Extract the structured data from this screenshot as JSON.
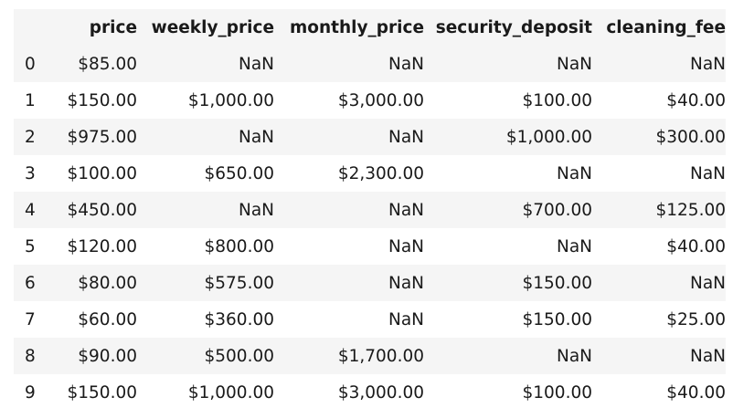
{
  "table": {
    "index_header": "",
    "columns": [
      "price",
      "weekly_price",
      "monthly_price",
      "security_deposit",
      "cleaning_fee"
    ],
    "rows": [
      {
        "index": "0",
        "values": [
          "$85.00",
          "NaN",
          "NaN",
          "NaN",
          "NaN"
        ]
      },
      {
        "index": "1",
        "values": [
          "$150.00",
          "$1,000.00",
          "$3,000.00",
          "$100.00",
          "$40.00"
        ]
      },
      {
        "index": "2",
        "values": [
          "$975.00",
          "NaN",
          "NaN",
          "$1,000.00",
          "$300.00"
        ]
      },
      {
        "index": "3",
        "values": [
          "$100.00",
          "$650.00",
          "$2,300.00",
          "NaN",
          "NaN"
        ]
      },
      {
        "index": "4",
        "values": [
          "$450.00",
          "NaN",
          "NaN",
          "$700.00",
          "$125.00"
        ]
      },
      {
        "index": "5",
        "values": [
          "$120.00",
          "$800.00",
          "NaN",
          "NaN",
          "$40.00"
        ]
      },
      {
        "index": "6",
        "values": [
          "$80.00",
          "$575.00",
          "NaN",
          "$150.00",
          "NaN"
        ]
      },
      {
        "index": "7",
        "values": [
          "$60.00",
          "$360.00",
          "NaN",
          "$150.00",
          "$25.00"
        ]
      },
      {
        "index": "8",
        "values": [
          "$90.00",
          "$500.00",
          "$1,700.00",
          "NaN",
          "NaN"
        ]
      },
      {
        "index": "9",
        "values": [
          "$150.00",
          "$1,000.00",
          "$3,000.00",
          "$100.00",
          "$40.00"
        ]
      }
    ]
  },
  "colors": {
    "stripe": "#f5f5f5",
    "background": "#ffffff",
    "text": "#1a1a1a"
  }
}
